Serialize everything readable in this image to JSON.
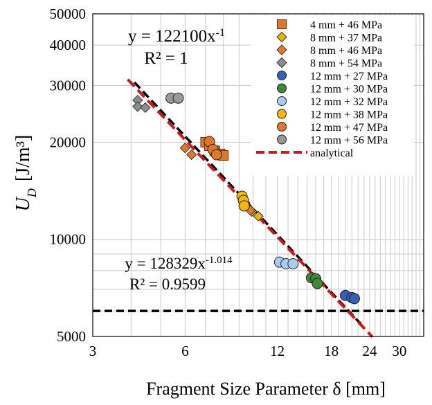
{
  "chart_data": {
    "type": "scatter",
    "xlabel": "Fragment Size Parameter δ  [mm]",
    "ylabel_main": "U",
    "ylabel_sub": "D",
    "ylabel_unit": "[J/m³]",
    "x_scale": "log",
    "y_scale": "log",
    "xlim": [
      3,
      36
    ],
    "ylim": [
      5000,
      50000
    ],
    "x_ticks": [
      3,
      6,
      12,
      18,
      24,
      30
    ],
    "y_ticks": [
      5000,
      10000,
      20000,
      30000,
      40000,
      50000
    ],
    "grid": true,
    "legend_position": "top-right",
    "series": [
      {
        "name": "4 mm + 46 MPa",
        "marker": "square",
        "color": "#E07828",
        "points": [
          [
            7.0,
            20000
          ],
          [
            7.2,
            19500
          ],
          [
            7.5,
            18800
          ],
          [
            7.8,
            18400
          ],
          [
            8.0,
            18200
          ]
        ]
      },
      {
        "name": "8 mm + 37 MPa",
        "marker": "diamond",
        "color": "#E8B400",
        "points": [
          [
            9.4,
            13000
          ],
          [
            9.9,
            12200
          ],
          [
            10.4,
            11800
          ]
        ]
      },
      {
        "name": "8 mm + 46 MPa",
        "marker": "diamond",
        "color": "#E07828",
        "points": [
          [
            6.0,
            19200
          ],
          [
            6.3,
            18300
          ],
          [
            9.8,
            12300
          ]
        ]
      },
      {
        "name": "8 mm + 54 MPa",
        "marker": "diamond",
        "color": "#8C8C8C",
        "points": [
          [
            4.2,
            27000
          ],
          [
            4.2,
            25800
          ],
          [
            4.45,
            25600
          ]
        ]
      },
      {
        "name": "12 mm + 27 MPa",
        "marker": "circle",
        "color": "#3060B8",
        "points": [
          [
            20.0,
            6700
          ],
          [
            21.0,
            6600
          ],
          [
            21.4,
            6550
          ]
        ]
      },
      {
        "name": "12 mm + 30 MPa",
        "marker": "circle",
        "color": "#3E8A34",
        "points": [
          [
            15.5,
            7600
          ],
          [
            16.0,
            7550
          ],
          [
            16.2,
            7300
          ]
        ]
      },
      {
        "name": "12 mm + 32 MPa",
        "marker": "circle",
        "color": "#A8CCEE",
        "points": [
          [
            12.2,
            8500
          ],
          [
            12.8,
            8400
          ],
          [
            13.5,
            8400
          ]
        ]
      },
      {
        "name": "12 mm + 38 MPa",
        "marker": "circle",
        "color": "#F4B800",
        "points": [
          [
            9.2,
            13600
          ],
          [
            9.3,
            13200
          ],
          [
            9.35,
            12700
          ]
        ]
      },
      {
        "name": "12 mm + 47 MPa",
        "marker": "circle",
        "color": "#E07828",
        "points": [
          [
            7.2,
            20100
          ],
          [
            7.4,
            19000
          ],
          [
            7.6,
            18300
          ]
        ]
      },
      {
        "name": "12 mm + 56 MPa",
        "marker": "circle",
        "color": "#9A9A9A",
        "points": [
          [
            5.4,
            27400
          ],
          [
            5.7,
            27400
          ]
        ]
      }
    ],
    "analytical": {
      "name": "analytical",
      "color": "#CC1818",
      "coefficient": 122100,
      "exponent": -1,
      "x_range": [
        3.9,
        24.5
      ]
    },
    "fit": {
      "coefficient": 128329,
      "exponent": -1.014,
      "color": "#000000",
      "x_range": [
        4.1,
        22.5
      ]
    },
    "horizontal_line": {
      "y": 6000,
      "color": "#000000"
    },
    "annotations": {
      "analytical_eq_base": "y = 122100x",
      "analytical_eq_exp": "-1",
      "analytical_r2": "R² = 1",
      "fit_eq_base": "y = 128329x",
      "fit_eq_exp": "-1.014",
      "fit_r2": "R² = 0.9599"
    }
  }
}
